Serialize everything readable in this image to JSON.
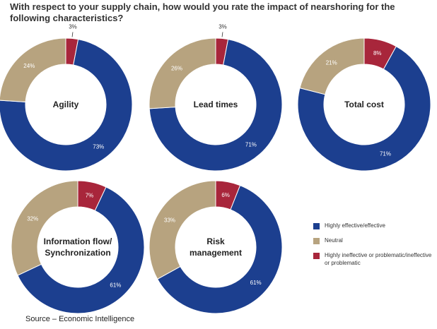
{
  "title": "With respect to your supply chain, how would you rate the impact of nearshoring for the following characteristics?",
  "colors": {
    "effective": "#1c3f8f",
    "neutral": "#b7a37f",
    "ineffective": "#a8263b"
  },
  "legend": [
    {
      "label": "Highly effective/effective",
      "color": "#1c3f8f"
    },
    {
      "label": "Neutral",
      "color": "#b7a37f"
    },
    {
      "label": "Highly ineffective or problematic/ineffective or problematic",
      "color": "#a8263b"
    }
  ],
  "source": "Source – Economic Intelligence",
  "chart_data": [
    {
      "type": "pie",
      "title": "Agility",
      "categories": [
        "Highly effective/effective",
        "Neutral",
        "Highly ineffective or problematic/ineffective or problematic"
      ],
      "values": [
        73,
        24,
        3
      ]
    },
    {
      "type": "pie",
      "title": "Lead times",
      "categories": [
        "Highly effective/effective",
        "Neutral",
        "Highly ineffective or problematic/ineffective or problematic"
      ],
      "values": [
        71,
        26,
        3
      ]
    },
    {
      "type": "pie",
      "title": "Total cost",
      "categories": [
        "Highly effective/effective",
        "Neutral",
        "Highly ineffective or problematic/ineffective or problematic"
      ],
      "values": [
        71,
        21,
        8
      ]
    },
    {
      "type": "pie",
      "title": "Information flow/ Synchronization",
      "categories": [
        "Highly effective/effective",
        "Neutral",
        "Highly ineffective or problematic/ineffective or problematic"
      ],
      "values": [
        61,
        32,
        7
      ]
    },
    {
      "type": "pie",
      "title": "Risk management",
      "categories": [
        "Highly effective/effective",
        "Neutral",
        "Highly ineffective or problematic/ineffective or problematic"
      ],
      "values": [
        61,
        33,
        6
      ]
    }
  ]
}
